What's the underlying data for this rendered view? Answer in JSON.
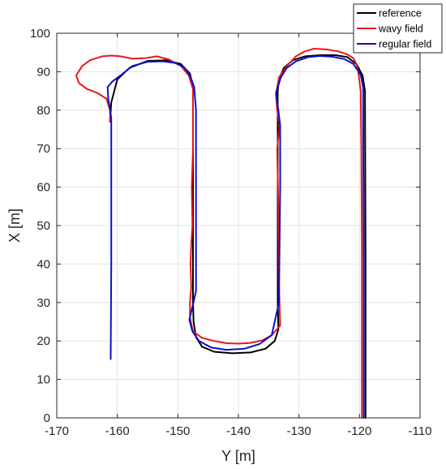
{
  "chart_data": {
    "type": "line",
    "title": "",
    "xlabel": "Y [m]",
    "ylabel": "X [m]",
    "xlim": [
      -170,
      -110
    ],
    "ylim": [
      0,
      100
    ],
    "xticks": [
      -170,
      -160,
      -150,
      -140,
      -130,
      -120,
      -110
    ],
    "yticks": [
      0,
      10,
      20,
      30,
      40,
      50,
      60,
      70,
      80,
      90,
      100
    ],
    "xtick_labels": [
      "-170",
      "-160",
      "-150",
      "-140",
      "-130",
      "-120",
      "-110"
    ],
    "ytick_labels": [
      "0",
      "10",
      "20",
      "30",
      "40",
      "50",
      "60",
      "70",
      "80",
      "90",
      "100"
    ],
    "grid": true,
    "legend_position": "top-right",
    "series": [
      {
        "name": "reference",
        "color": "#000000",
        "x": [
          -119,
          -119,
          -119.1,
          -119.5,
          -120.5,
          -122,
          -124,
          -126.5,
          -129,
          -131,
          -132.5,
          -133.3,
          -133.5,
          -133.5,
          -133.5,
          -133.4,
          -134,
          -135.5,
          -138,
          -141,
          -144,
          -146,
          -147,
          -147.4,
          -147.5,
          -147.5,
          -147.5,
          -147.5,
          -148,
          -149.5,
          -152,
          -155,
          -158,
          -160,
          -161,
          -161.2
        ],
        "y": [
          0,
          40,
          85,
          89,
          92,
          93.8,
          94.3,
          94.3,
          94,
          93,
          91,
          88,
          85,
          60,
          30,
          23,
          20,
          18,
          17,
          16.8,
          17.2,
          18.5,
          21,
          25,
          30,
          60,
          80,
          86,
          89.5,
          92,
          93,
          92.8,
          91,
          88,
          82,
          77
        ]
      },
      {
        "name": "wavy field",
        "color": "#e8161b",
        "x": [
          -119.6,
          -119.6,
          -119.7,
          -119.8,
          -120.2,
          -120.5,
          -121,
          -122,
          -123.5,
          -125.5,
          -127.5,
          -129,
          -130.5,
          -132,
          -133.3,
          -133.8,
          -133.6,
          -133.2,
          -133.6,
          -133.4,
          -133.3,
          -133.1,
          -134.5,
          -136,
          -138,
          -140,
          -142,
          -144,
          -146,
          -147.5,
          -148,
          -148,
          -147.8,
          -147.9,
          -147.8,
          -147.6,
          -147.7,
          -147.5,
          -147.5,
          -147.5,
          -148.2,
          -149.5,
          -151.5,
          -153.5,
          -155.5,
          -157.5,
          -159.5,
          -161,
          -162.5,
          -164.5,
          -165.8,
          -166.8,
          -166.3,
          -165,
          -163.3,
          -161.8,
          -161.2,
          -161.2
        ],
        "y": [
          0,
          45,
          70,
          85,
          90,
          92,
          93.5,
          94.5,
          95.3,
          95.8,
          96,
          95.3,
          94,
          91.5,
          88.5,
          84,
          80,
          76,
          70,
          55,
          35,
          24,
          21.5,
          20.2,
          19.5,
          19.3,
          19.4,
          20,
          20.8,
          22.5,
          26,
          30,
          34,
          40,
          45,
          50,
          60,
          70,
          80,
          85.5,
          89,
          91.5,
          93.2,
          94,
          93.5,
          93.4,
          94,
          94.2,
          94,
          93,
          91.5,
          89,
          87,
          85.5,
          84.5,
          83,
          80,
          77
        ]
      },
      {
        "name": "regular field",
        "color": "#0c10c8",
        "x": [
          -119.3,
          -119.3,
          -119.4,
          -119.8,
          -121,
          -122.5,
          -124.5,
          -126.5,
          -128.5,
          -130.5,
          -132,
          -133,
          -133.8,
          -133.4,
          -133.1,
          -133.1,
          -133.3,
          -134.5,
          -136.5,
          -139,
          -142,
          -144.5,
          -146.5,
          -147.6,
          -148.1,
          -147.5,
          -147,
          -147,
          -147,
          -147,
          -147.3,
          -148,
          -149,
          -150.5,
          -152.5,
          -155,
          -157.5,
          -159.5,
          -160.8,
          -161.6,
          -161.5,
          -161,
          -161,
          -161,
          -161.1
        ],
        "y": [
          0,
          40,
          86,
          89.2,
          92,
          93.3,
          93.9,
          94.1,
          93.8,
          92.7,
          91,
          88.5,
          84.5,
          80,
          76,
          60,
          30,
          21.5,
          19.2,
          18,
          17.7,
          18.3,
          20,
          22.5,
          25.5,
          29.5,
          33,
          40,
          60,
          80,
          86,
          89,
          91.2,
          92.3,
          92.7,
          92.6,
          91.5,
          89,
          87.5,
          86,
          83,
          78,
          75,
          40,
          15.3
        ]
      }
    ]
  }
}
